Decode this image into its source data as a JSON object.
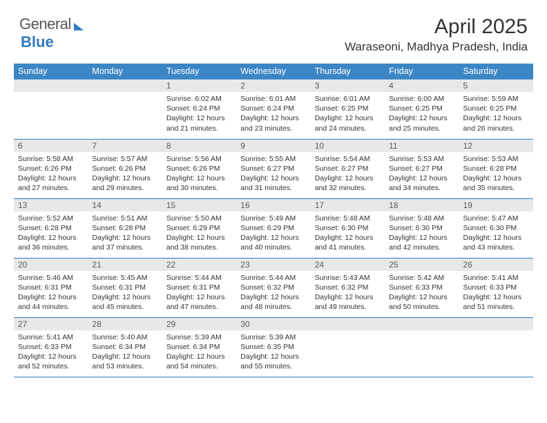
{
  "brand": {
    "word1": "General",
    "word2": "Blue"
  },
  "title": {
    "month": "April 2025",
    "location": "Waraseoni, Madhya Pradesh, India"
  },
  "calendar": {
    "type": "table",
    "accent_color": "#3d86c6",
    "border_color": "#2f7bbf",
    "header_bg": "#3d86c6",
    "header_text_color": "#ffffff",
    "daynum_bg": "#e8e8e8",
    "background_color": "#ffffff",
    "body_fontsize": 10.5,
    "header_fontsize": 12.5,
    "columns": [
      "Sunday",
      "Monday",
      "Tuesday",
      "Wednesday",
      "Thursday",
      "Friday",
      "Saturday"
    ],
    "weeks": [
      [
        null,
        null,
        {
          "n": "1",
          "sr": "6:02 AM",
          "ss": "6:24 PM",
          "dl": "12 hours and 21 minutes."
        },
        {
          "n": "2",
          "sr": "6:01 AM",
          "ss": "6:24 PM",
          "dl": "12 hours and 23 minutes."
        },
        {
          "n": "3",
          "sr": "6:01 AM",
          "ss": "6:25 PM",
          "dl": "12 hours and 24 minutes."
        },
        {
          "n": "4",
          "sr": "6:00 AM",
          "ss": "6:25 PM",
          "dl": "12 hours and 25 minutes."
        },
        {
          "n": "5",
          "sr": "5:59 AM",
          "ss": "6:25 PM",
          "dl": "12 hours and 26 minutes."
        }
      ],
      [
        {
          "n": "6",
          "sr": "5:58 AM",
          "ss": "6:26 PM",
          "dl": "12 hours and 27 minutes."
        },
        {
          "n": "7",
          "sr": "5:57 AM",
          "ss": "6:26 PM",
          "dl": "12 hours and 29 minutes."
        },
        {
          "n": "8",
          "sr": "5:56 AM",
          "ss": "6:26 PM",
          "dl": "12 hours and 30 minutes."
        },
        {
          "n": "9",
          "sr": "5:55 AM",
          "ss": "6:27 PM",
          "dl": "12 hours and 31 minutes."
        },
        {
          "n": "10",
          "sr": "5:54 AM",
          "ss": "6:27 PM",
          "dl": "12 hours and 32 minutes."
        },
        {
          "n": "11",
          "sr": "5:53 AM",
          "ss": "6:27 PM",
          "dl": "12 hours and 34 minutes."
        },
        {
          "n": "12",
          "sr": "5:53 AM",
          "ss": "6:28 PM",
          "dl": "12 hours and 35 minutes."
        }
      ],
      [
        {
          "n": "13",
          "sr": "5:52 AM",
          "ss": "6:28 PM",
          "dl": "12 hours and 36 minutes."
        },
        {
          "n": "14",
          "sr": "5:51 AM",
          "ss": "6:28 PM",
          "dl": "12 hours and 37 minutes."
        },
        {
          "n": "15",
          "sr": "5:50 AM",
          "ss": "6:29 PM",
          "dl": "12 hours and 38 minutes."
        },
        {
          "n": "16",
          "sr": "5:49 AM",
          "ss": "6:29 PM",
          "dl": "12 hours and 40 minutes."
        },
        {
          "n": "17",
          "sr": "5:48 AM",
          "ss": "6:30 PM",
          "dl": "12 hours and 41 minutes."
        },
        {
          "n": "18",
          "sr": "5:48 AM",
          "ss": "6:30 PM",
          "dl": "12 hours and 42 minutes."
        },
        {
          "n": "19",
          "sr": "5:47 AM",
          "ss": "6:30 PM",
          "dl": "12 hours and 43 minutes."
        }
      ],
      [
        {
          "n": "20",
          "sr": "5:46 AM",
          "ss": "6:31 PM",
          "dl": "12 hours and 44 minutes."
        },
        {
          "n": "21",
          "sr": "5:45 AM",
          "ss": "6:31 PM",
          "dl": "12 hours and 45 minutes."
        },
        {
          "n": "22",
          "sr": "5:44 AM",
          "ss": "6:31 PM",
          "dl": "12 hours and 47 minutes."
        },
        {
          "n": "23",
          "sr": "5:44 AM",
          "ss": "6:32 PM",
          "dl": "12 hours and 48 minutes."
        },
        {
          "n": "24",
          "sr": "5:43 AM",
          "ss": "6:32 PM",
          "dl": "12 hours and 49 minutes."
        },
        {
          "n": "25",
          "sr": "5:42 AM",
          "ss": "6:33 PM",
          "dl": "12 hours and 50 minutes."
        },
        {
          "n": "26",
          "sr": "5:41 AM",
          "ss": "6:33 PM",
          "dl": "12 hours and 51 minutes."
        }
      ],
      [
        {
          "n": "27",
          "sr": "5:41 AM",
          "ss": "6:33 PM",
          "dl": "12 hours and 52 minutes."
        },
        {
          "n": "28",
          "sr": "5:40 AM",
          "ss": "6:34 PM",
          "dl": "12 hours and 53 minutes."
        },
        {
          "n": "29",
          "sr": "5:39 AM",
          "ss": "6:34 PM",
          "dl": "12 hours and 54 minutes."
        },
        {
          "n": "30",
          "sr": "5:39 AM",
          "ss": "6:35 PM",
          "dl": "12 hours and 55 minutes."
        },
        null,
        null,
        null
      ]
    ],
    "labels": {
      "sunrise": "Sunrise:",
      "sunset": "Sunset:",
      "daylight": "Daylight:"
    }
  }
}
